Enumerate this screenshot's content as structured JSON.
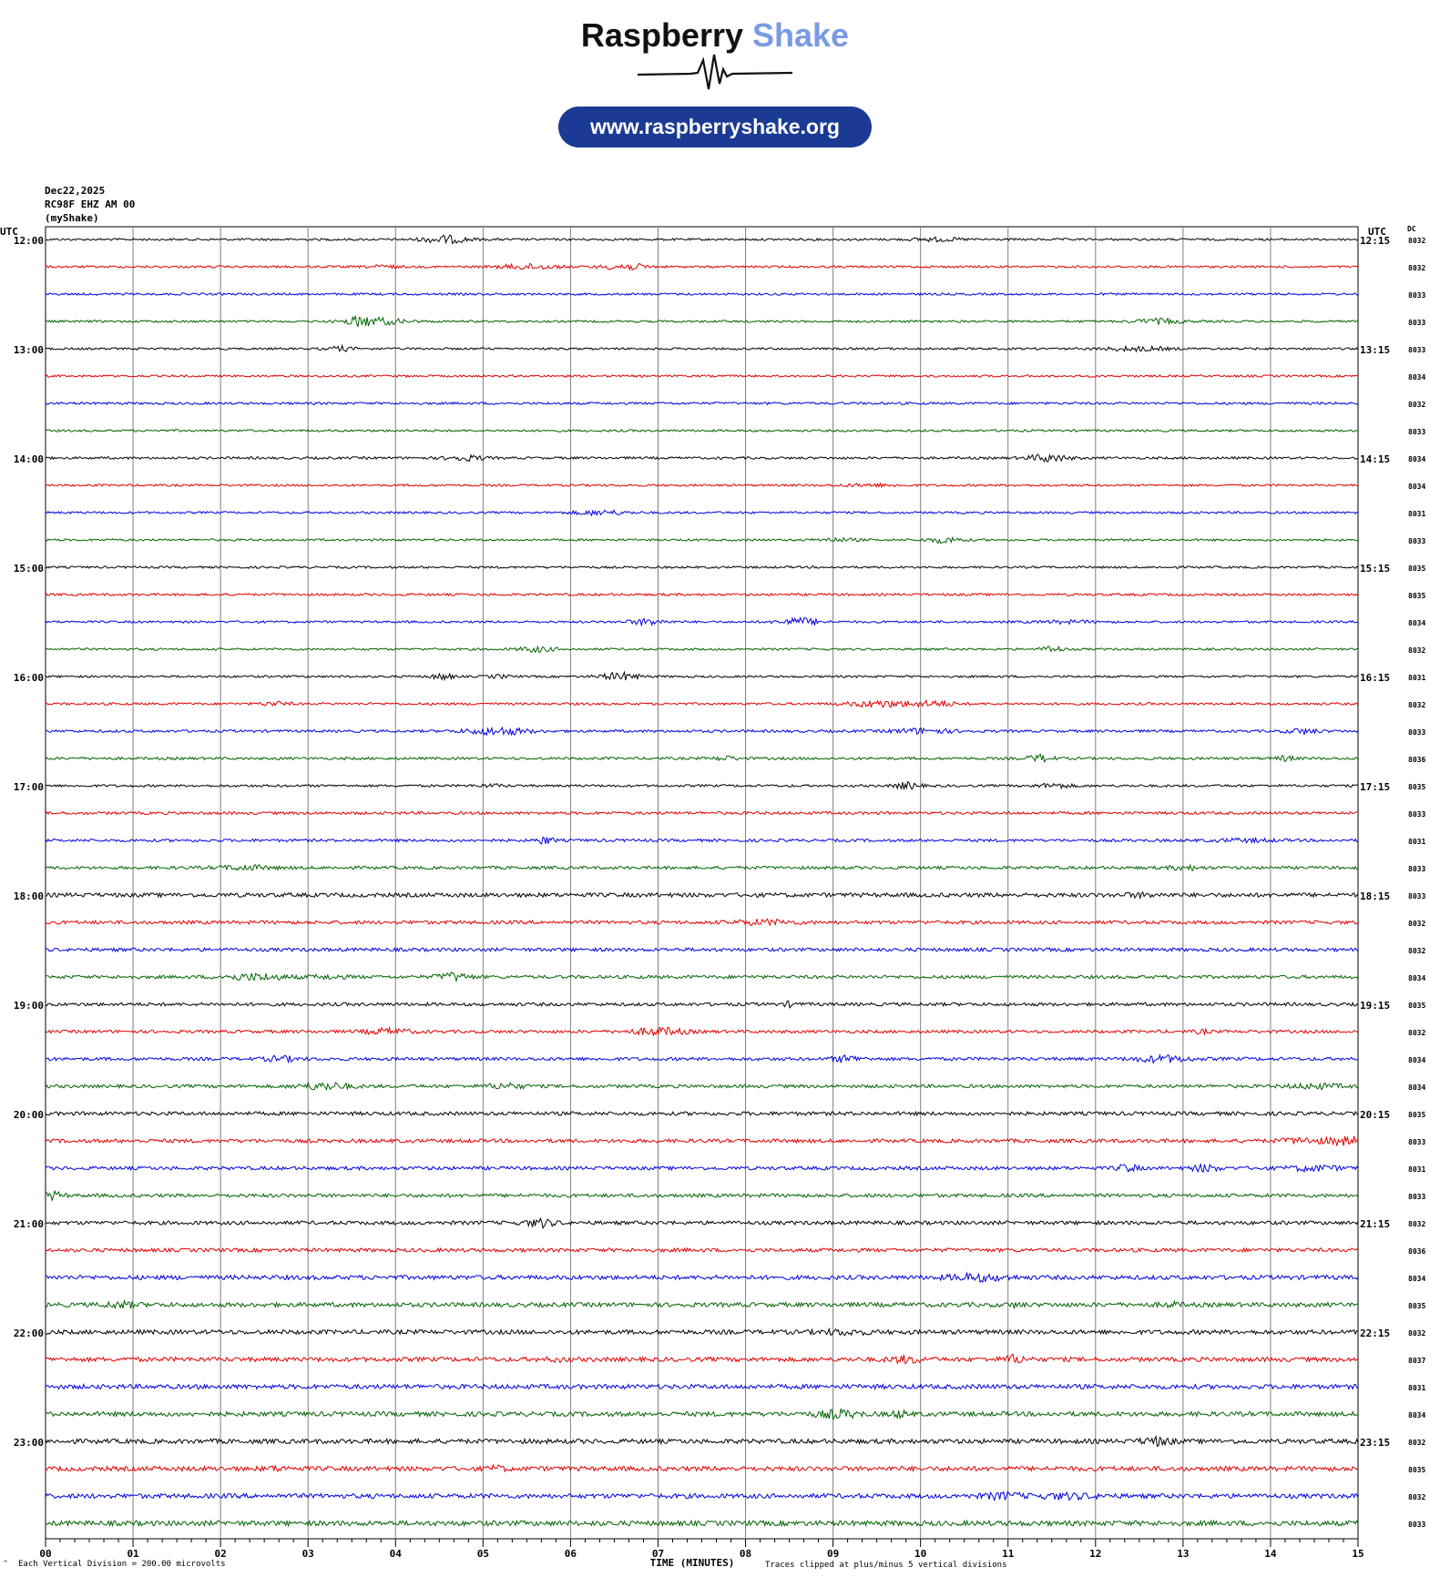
{
  "logo": {
    "word1": "Raspberry",
    "word2": "Shake",
    "url": "www.raspberryshake.org",
    "brand_color": "#1b3a94",
    "accent_color": "#7b9ae3"
  },
  "header": {
    "date": "Dec22,2025",
    "station": "RC98F EHZ AM 00",
    "network": "(myShake)"
  },
  "labels": {
    "utc_left": "UTC",
    "utc_right": "UTC",
    "dc": "DC",
    "xlabel": "TIME (MINUTES)",
    "scale_note": "Each Vertical Division =  200.00 microvolts",
    "clip_note": "Traces clipped at plus/minus 5 vertical divisions"
  },
  "colors": [
    "#000000",
    "#e00000",
    "#0000e0",
    "#006400"
  ],
  "chart_data": {
    "type": "line",
    "title": "",
    "xlabel": "TIME (MINUTES)",
    "x_ticks": [
      "00",
      "01",
      "02",
      "03",
      "04",
      "05",
      "06",
      "07",
      "08",
      "09",
      "10",
      "11",
      "12",
      "13",
      "14",
      "15"
    ],
    "xlim": [
      0,
      15
    ],
    "rows_per_hour": 4,
    "hour_labels_left": [
      "12:00",
      "13:00",
      "14:00",
      "15:00",
      "16:00",
      "17:00",
      "18:00",
      "19:00",
      "20:00",
      "21:00",
      "22:00",
      "23:00"
    ],
    "hour_labels_right": [
      "12:15",
      "13:15",
      "14:15",
      "15:15",
      "16:15",
      "17:15",
      "18:15",
      "19:15",
      "20:15",
      "21:15",
      "22:15",
      "23:15"
    ],
    "dc_offsets": [
      "8032",
      "8032",
      "8033",
      "8033",
      "8033",
      "8034",
      "8032",
      "8033",
      "8034",
      "8034",
      "8031",
      "8033",
      "8035",
      "8035",
      "8034",
      "8032",
      "8031",
      "8032",
      "8033",
      "8036",
      "8035",
      "8033",
      "8031",
      "8033",
      "8033",
      "8032",
      "8032",
      "8034",
      "8035",
      "8032",
      "8034",
      "8034",
      "8035",
      "8033",
      "8031",
      "8033",
      "8032",
      "8036",
      "8034",
      "8035",
      "8032",
      "8037",
      "8031",
      "8034",
      "8032",
      "8035",
      "8032",
      "8033"
    ],
    "noise_level": [
      1.0,
      1.0,
      1.0,
      1.0,
      1.0,
      1.0,
      1.1,
      1.0,
      1.1,
      1.0,
      1.0,
      1.0,
      1.0,
      1.1,
      1.0,
      1.0,
      1.0,
      1.1,
      1.2,
      1.2,
      1.1,
      1.3,
      1.3,
      1.4,
      1.9,
      1.6,
      1.6,
      1.5,
      1.5,
      1.4,
      1.5,
      1.5,
      1.7,
      1.7,
      1.6,
      1.6,
      1.7,
      1.7,
      2.0,
      2.0,
      2.0,
      2.0,
      2.1,
      2.1,
      2.1,
      2.1,
      2.1,
      2.3
    ],
    "clip_divisions": 5,
    "scale_microvolts_per_division": 200.0
  }
}
